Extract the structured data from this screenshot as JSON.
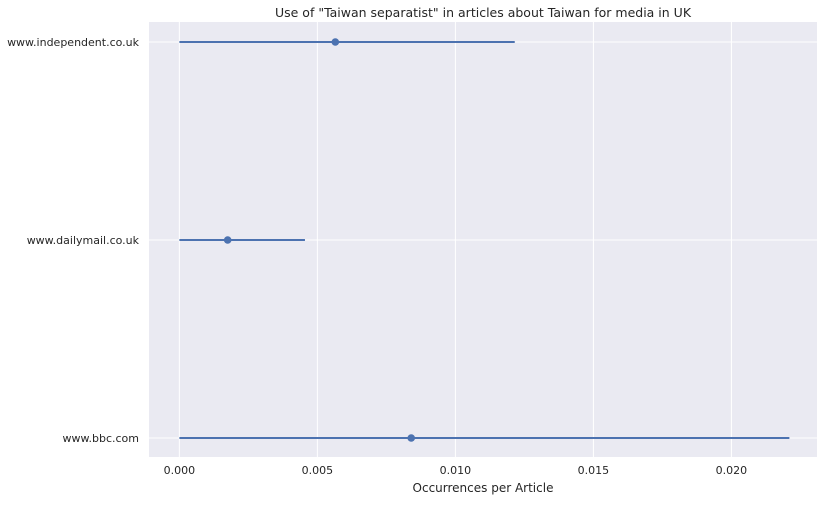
{
  "chart_data": {
    "type": "scatter",
    "title": "Use of \"Taiwan separatist\" in articles about Taiwan for media in UK",
    "xlabel": "Occurrences per Article",
    "ylabel": "",
    "xlim": [
      -0.0011,
      0.0231
    ],
    "xticks": [
      "0.000",
      "0.005",
      "0.010",
      "0.015",
      "0.020"
    ],
    "xtick_values": [
      0.0,
      0.005,
      0.01,
      0.015,
      0.02
    ],
    "categories": [
      "www.independent.co.uk",
      "www.dailymail.co.uk",
      "www.bbc.com"
    ],
    "points": [
      {
        "category": "www.independent.co.uk",
        "value": 0.00565,
        "ci_low": 0.0,
        "ci_high": 0.01215
      },
      {
        "category": "www.dailymail.co.uk",
        "value": 0.00175,
        "ci_low": 0.0,
        "ci_high": 0.00455
      },
      {
        "category": "www.bbc.com",
        "value": 0.0084,
        "ci_low": 0.0,
        "ci_high": 0.0221
      }
    ],
    "grid": true,
    "colors": {
      "background": "#eaeaf2",
      "grid": "#ffffff",
      "series": "#4c72b0",
      "text": "#262626"
    }
  }
}
